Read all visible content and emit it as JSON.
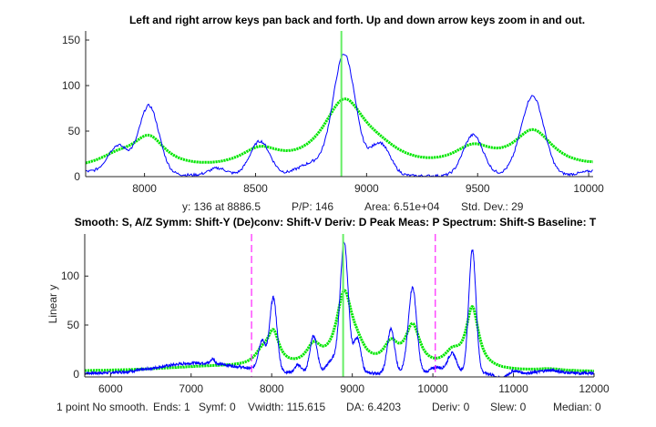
{
  "chart_data": [
    {
      "type": "line",
      "title": "Left and right arrow keys pan back and forth. Up and down arrow keys zoom in and out.",
      "xlim": [
        7735,
        10020
      ],
      "ylim": [
        0,
        160
      ],
      "xticks": [
        "8000",
        "8500",
        "9000",
        "9500",
        "10000"
      ],
      "xtick_values": [
        8000,
        8500,
        9000,
        9500,
        10000
      ],
      "yticks": [
        "0",
        "50",
        "100",
        "150"
      ],
      "ytick_values": [
        0,
        50,
        100,
        150
      ],
      "cursor_x": 8886.5,
      "readout": [
        "y: 136 at 8886.5",
        "P/P: 146",
        "Area: 6.51e+04",
        "Std. Dev.: 29"
      ],
      "colors": {
        "signal": "#0000ff",
        "smoothed": "#00e600",
        "cursor": "#66ee66",
        "limits": "#ff33ff"
      }
    },
    {
      "type": "line",
      "title": "Smooth: S, A/Z  Symm: Shift-Y  (De)conv: Shift-V  Deriv: D  Peak Meas: P  Spectrum: Shift-S  Baseline: T",
      "ylabel": "Linear y",
      "xlim": [
        5680,
        12000
      ],
      "ylim": [
        -3,
        143
      ],
      "xticks": [
        "6000",
        "7000",
        "8000",
        "9000",
        "10000",
        "11000",
        "12000"
      ],
      "xtick_values": [
        6000,
        7000,
        8000,
        9000,
        10000,
        11000,
        12000
      ],
      "yticks": [
        "0",
        "50",
        "100"
      ],
      "ytick_values": [
        0,
        50,
        100
      ],
      "cursor_x": 8886.5,
      "limit_lines": [
        7750,
        10030
      ],
      "status": [
        "1 point No smooth.",
        "Ends: 1",
        "Symf: 0",
        "Vwidth: 115.615",
        "DA: 6.4203",
        "Deriv: 0",
        "Slew: 0",
        "Median: 0"
      ]
    }
  ],
  "series": {
    "signal_peaks": [
      [
        6850,
        5,
        400
      ],
      [
        7300,
        7,
        450
      ],
      [
        7270,
        5,
        25
      ],
      [
        7880,
        30,
        45
      ],
      [
        8020,
        75,
        45
      ],
      [
        8330,
        8,
        40
      ],
      [
        8520,
        38,
        45
      ],
      [
        8760,
        14,
        70
      ],
      [
        8900,
        132,
        50
      ],
      [
        9060,
        36,
        45
      ],
      [
        9480,
        45,
        45
      ],
      [
        9700,
        8,
        60
      ],
      [
        9750,
        82,
        50
      ],
      [
        10050,
        6,
        80
      ],
      [
        10240,
        20,
        55
      ],
      [
        10490,
        126,
        45
      ],
      [
        10850,
        -5,
        80
      ],
      [
        11000,
        3,
        60
      ],
      [
        11450,
        3,
        120
      ]
    ],
    "smoothed_peaks": [
      [
        7300,
        5,
        900
      ],
      [
        7880,
        12,
        110
      ],
      [
        8020,
        33,
        90
      ],
      [
        8520,
        20,
        110
      ],
      [
        8900,
        74,
        120
      ],
      [
        9060,
        12,
        120
      ],
      [
        9480,
        22,
        110
      ],
      [
        9750,
        42,
        110
      ],
      [
        10240,
        14,
        120
      ],
      [
        10490,
        62,
        95
      ],
      [
        11450,
        2,
        200
      ]
    ],
    "smoothed_baseline": 2
  }
}
